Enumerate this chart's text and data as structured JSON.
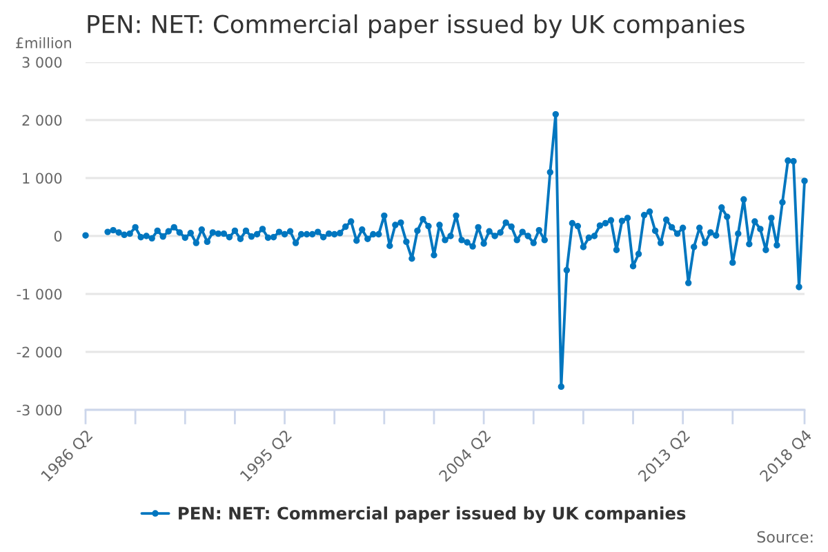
{
  "chart_data": {
    "type": "line",
    "title": "PEN: NET: Commercial paper issued by UK companies",
    "ylabel": "£million",
    "categories": [
      "1986 Q2",
      null,
      null,
      null,
      null,
      null,
      null,
      null,
      null,
      null,
      null,
      null,
      null,
      null,
      null,
      null,
      null,
      null,
      null,
      null,
      null,
      null,
      null,
      null,
      null,
      null,
      null,
      null,
      null,
      null,
      null,
      null,
      null,
      null,
      null,
      null,
      "1995 Q2",
      null,
      null,
      null,
      null,
      null,
      null,
      null,
      null,
      null,
      null,
      null,
      null,
      null,
      null,
      null,
      null,
      null,
      null,
      null,
      null,
      null,
      null,
      null,
      null,
      null,
      null,
      null,
      null,
      null,
      null,
      null,
      null,
      null,
      null,
      null,
      "2004 Q2",
      null,
      null,
      null,
      null,
      null,
      null,
      null,
      null,
      null,
      null,
      null,
      null,
      null,
      null,
      null,
      null,
      null,
      null,
      null,
      null,
      null,
      null,
      null,
      null,
      null,
      null,
      null,
      null,
      null,
      null,
      null,
      null,
      null,
      null,
      null,
      "2013 Q2",
      null,
      null,
      null,
      null,
      null,
      null,
      null,
      null,
      null,
      null,
      null,
      null,
      null,
      null,
      null,
      null,
      null,
      null,
      null,
      null,
      null,
      "2018 Q4"
    ],
    "series": [
      {
        "name": "PEN: NET: Commercial paper issued by UK companies",
        "color": "#0076bf",
        "values": [
          10,
          null,
          null,
          null,
          70,
          100,
          60,
          20,
          40,
          150,
          -20,
          0,
          -40,
          90,
          -10,
          80,
          150,
          60,
          -30,
          50,
          -120,
          110,
          -100,
          60,
          40,
          40,
          -20,
          90,
          -50,
          90,
          -10,
          30,
          120,
          -30,
          -20,
          70,
          30,
          80,
          -120,
          30,
          30,
          30,
          70,
          -20,
          40,
          30,
          50,
          160,
          250,
          -80,
          110,
          -50,
          30,
          30,
          350,
          -170,
          190,
          230,
          -100,
          -390,
          90,
          290,
          170,
          -330,
          190,
          -70,
          0,
          350,
          -70,
          -110,
          -180,
          150,
          -130,
          80,
          0,
          60,
          230,
          160,
          -70,
          70,
          0,
          -120,
          100,
          -70,
          1100,
          2100,
          -2600,
          -590,
          220,
          170,
          -190,
          -30,
          0,
          180,
          220,
          270,
          -240,
          260,
          310,
          -520,
          -310,
          360,
          420,
          90,
          -120,
          280,
          150,
          40,
          140,
          -810,
          -190,
          140,
          -120,
          60,
          10,
          490,
          330,
          -460,
          40,
          630,
          -140,
          250,
          120,
          -240,
          310,
          -160,
          580,
          1300,
          1290,
          -880,
          950
        ]
      }
    ],
    "ylim": [
      -3000,
      3000
    ],
    "yticks": [
      {
        "value": -3000,
        "label": "-3 000"
      },
      {
        "value": -2000,
        "label": "-2 000"
      },
      {
        "value": -1000,
        "label": "-1 000"
      },
      0,
      {
        "value": 1000,
        "label": "1 000"
      },
      {
        "value": 2000,
        "label": "2 000"
      },
      {
        "value": 3000,
        "label": "3 000"
      }
    ],
    "grid": "y",
    "legend": "bottom",
    "marker": "circle",
    "line_style": "solid",
    "annotations": [
      "Source:"
    ]
  }
}
